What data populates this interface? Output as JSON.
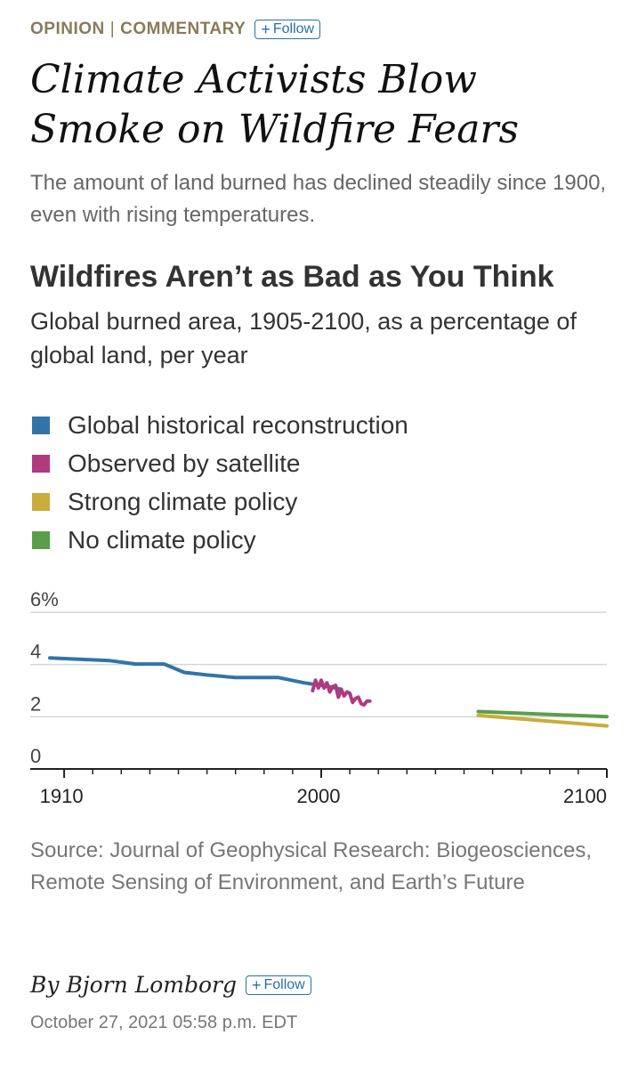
{
  "header": {
    "section": "OPINION",
    "subsection": "COMMENTARY",
    "follow_label": "Follow"
  },
  "headline": "Climate Activists Blow Smoke on Wildfire Fears",
  "dek": "The amount of land burned has declined steadily since 1900, even with rising temperatures.",
  "chart_data": {
    "type": "line",
    "title": "Wildfires Aren’t as Bad as You Think",
    "subtitle": "Global burned area, 1905-2100, as a percentage of global land, per year",
    "xlabel": "",
    "ylabel": "",
    "xlim": [
      1900,
      2100
    ],
    "ylim": [
      0,
      6
    ],
    "x_ticks": [
      1910,
      2000,
      2100
    ],
    "y_ticks": [
      "0",
      "2",
      "4",
      "6%"
    ],
    "legend": [
      {
        "name": "Global historical reconstruction",
        "color": "#3274a8"
      },
      {
        "name": "Observed by satellite",
        "color": "#b03a7e"
      },
      {
        "name": "Strong climate policy",
        "color": "#c9ac3c"
      },
      {
        "name": "No climate policy",
        "color": "#5a9e4a"
      }
    ],
    "series": [
      {
        "name": "Global historical reconstruction",
        "color": "#3274a8",
        "x": [
          1905,
          1926,
          1935,
          1945,
          1952,
          1960,
          1970,
          1975,
          1985,
          1994,
          2000,
          2003,
          2007
        ],
        "y": [
          4.25,
          4.15,
          4.02,
          4.02,
          3.7,
          3.6,
          3.5,
          3.5,
          3.5,
          3.3,
          3.2,
          3.15,
          3.05
        ]
      },
      {
        "name": "Observed by satellite",
        "color": "#b03a7e",
        "x": [
          1997,
          1998,
          1999,
          2000,
          2001,
          2002,
          2003,
          2004,
          2005,
          2006,
          2007,
          2008,
          2009,
          2010,
          2011,
          2012,
          2013,
          2014,
          2015,
          2016,
          2017
        ],
        "y": [
          3.0,
          3.4,
          3.1,
          3.4,
          3.1,
          3.3,
          2.95,
          3.15,
          3.2,
          2.75,
          3.05,
          2.8,
          2.95,
          2.9,
          2.55,
          2.7,
          2.75,
          2.5,
          2.45,
          2.6,
          2.6
        ]
      },
      {
        "name": "Strong climate policy",
        "color": "#c9ac3c",
        "x": [
          2055,
          2100
        ],
        "y": [
          2.05,
          1.65
        ]
      },
      {
        "name": "No climate policy",
        "color": "#5a9e4a",
        "x": [
          2055,
          2100
        ],
        "y": [
          2.2,
          2.0
        ]
      }
    ]
  },
  "source": "Source: Journal of Geophysical Research: Biogeosciences, Remote Sensing of Environment, and Earth’s Future",
  "byline": {
    "author": "By Bjorn Lomborg",
    "follow_label": "Follow"
  },
  "timestamp": "October 27, 2021 05:58 p.m. EDT"
}
